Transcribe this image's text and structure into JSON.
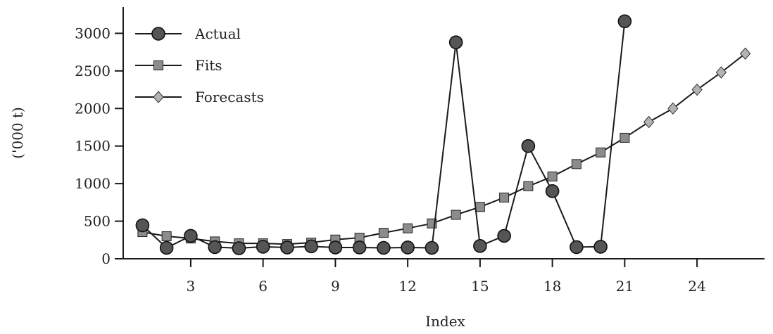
{
  "chart_data": {
    "type": "line",
    "title": "",
    "xlabel": "Index",
    "ylabel": "('000 t)",
    "xlim": [
      0.2,
      26.8
    ],
    "ylim": [
      0,
      3350
    ],
    "x_ticks": [
      3,
      6,
      9,
      12,
      15,
      18,
      21,
      24
    ],
    "x_tick_labels": [
      "3",
      "6",
      "9",
      "12",
      "15",
      "18",
      "21",
      "24"
    ],
    "y_ticks": [
      0,
      500,
      1000,
      1500,
      2000,
      2500,
      3000
    ],
    "y_tick_labels": [
      "0",
      "500",
      "1000",
      "1500",
      "2000",
      "2500",
      "3000"
    ],
    "grid": false,
    "legend_position": "top-left",
    "colors": {
      "line": "#1a1a1a",
      "actual_marker": "#555555",
      "fits_marker": "#8c8c8c",
      "forecast_marker": "#b3b3b3"
    },
    "series": [
      {
        "name": "Actual",
        "marker": "circle",
        "x": [
          1,
          2,
          3,
          4,
          5,
          6,
          7,
          8,
          9,
          10,
          11,
          12,
          13,
          14,
          15,
          16,
          17,
          18,
          19,
          20,
          21
        ],
        "values": [
          445,
          145,
          305,
          155,
          140,
          160,
          150,
          165,
          150,
          150,
          145,
          150,
          145,
          2880,
          170,
          305,
          1500,
          900,
          155,
          160,
          3160
        ]
      },
      {
        "name": "Fits",
        "marker": "square",
        "x": [
          1,
          2,
          3,
          4,
          5,
          6,
          7,
          8,
          9,
          10,
          11,
          12,
          13,
          14,
          15,
          16,
          17,
          18,
          19,
          20,
          21
        ],
        "values": [
          355,
          300,
          270,
          230,
          205,
          205,
          195,
          215,
          255,
          280,
          345,
          405,
          470,
          585,
          690,
          815,
          965,
          1095,
          1260,
          1415,
          1610
        ]
      },
      {
        "name": "Forecasts",
        "marker": "diamond",
        "x": [
          22,
          23,
          24,
          25,
          26
        ],
        "values": [
          1820,
          2000,
          2250,
          2480,
          2730
        ]
      }
    ]
  }
}
